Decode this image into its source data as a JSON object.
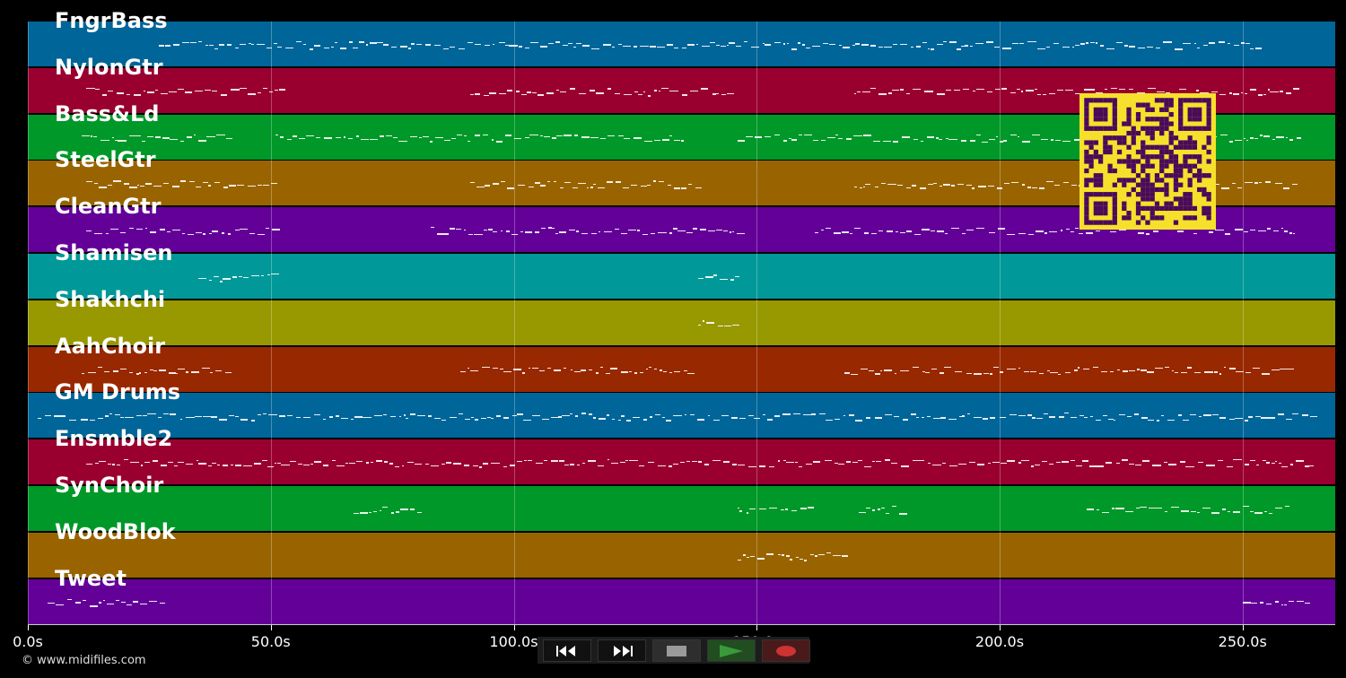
{
  "tracks": [
    {
      "name": "FngrBass",
      "color": "#006598"
    },
    {
      "name": "NylonGtr",
      "color": "#990030"
    },
    {
      "name": "Bass&Ld",
      "color": "#009828"
    },
    {
      "name": "SteelGtr",
      "color": "#996400"
    },
    {
      "name": "CleanGtr",
      "color": "#630098"
    },
    {
      "name": "Shamisen",
      "color": "#009898"
    },
    {
      "name": "Shakhchi",
      "color": "#989800"
    },
    {
      "name": "AahChoir",
      "color": "#982800"
    },
    {
      "name": "GM Drums",
      "color": "#006598"
    },
    {
      "name": "Ensmble2",
      "color": "#990030"
    },
    {
      "name": "SynChoir",
      "color": "#009828"
    },
    {
      "name": "WoodBlok",
      "color": "#996400"
    },
    {
      "name": "Tweet",
      "color": "#630098"
    }
  ],
  "time_axis": {
    "ticks": [
      {
        "value": 0,
        "label": "0.0s"
      },
      {
        "value": 50,
        "label": "50.0s"
      },
      {
        "value": 100,
        "label": "100.0s"
      },
      {
        "value": 150,
        "label": "150.0s"
      },
      {
        "value": 200,
        "label": "200.0s"
      },
      {
        "value": 250,
        "label": "250.0s"
      }
    ],
    "max_seconds": 269
  },
  "copyright": "© www.midifiles.com",
  "transport": {
    "rewind_icon": "rewind-icon",
    "forward_icon": "fast-forward-icon",
    "stop_icon": "stop-icon",
    "play_icon": "play-icon",
    "record_icon": "record-icon",
    "play_color": "#3a9a3a",
    "record_color": "#cc3333"
  },
  "qr_code": {
    "icon": "qr-code-icon",
    "fg": "#4a0a5a",
    "bg": "#f7e02b"
  },
  "note_segments": [
    {
      "track": 0,
      "spans": [
        [
          27,
          253
        ]
      ]
    },
    {
      "track": 1,
      "spans": [
        [
          12,
          52
        ],
        [
          91,
          146
        ],
        [
          170,
          261
        ]
      ]
    },
    {
      "track": 2,
      "spans": [
        [
          11,
          41
        ],
        [
          51,
          135
        ],
        [
          146,
          262
        ]
      ]
    },
    {
      "track": 3,
      "spans": [
        [
          12,
          51
        ],
        [
          91,
          138
        ],
        [
          170,
          261
        ]
      ]
    },
    {
      "track": 4,
      "spans": [
        [
          12,
          52
        ],
        [
          83,
          146
        ],
        [
          162,
          261
        ]
      ]
    },
    {
      "track": 5,
      "spans": [
        [
          35,
          51
        ],
        [
          138,
          146
        ]
      ]
    },
    {
      "track": 6,
      "spans": [
        [
          138,
          146
        ]
      ]
    },
    {
      "track": 7,
      "spans": [
        [
          11,
          41
        ],
        [
          89,
          136
        ],
        [
          168,
          261
        ]
      ]
    },
    {
      "track": 8,
      "spans": [
        [
          2,
          89
        ],
        [
          90,
          168
        ],
        [
          169,
          266
        ]
      ]
    },
    {
      "track": 9,
      "spans": [
        [
          12,
          264
        ]
      ]
    },
    {
      "track": 10,
      "spans": [
        [
          67,
          81
        ],
        [
          146,
          162
        ],
        [
          171,
          181
        ],
        [
          218,
          260
        ]
      ]
    },
    {
      "track": 11,
      "spans": [
        [
          146,
          168
        ]
      ]
    },
    {
      "track": 12,
      "spans": [
        [
          4,
          28
        ],
        [
          250,
          263
        ]
      ]
    }
  ]
}
